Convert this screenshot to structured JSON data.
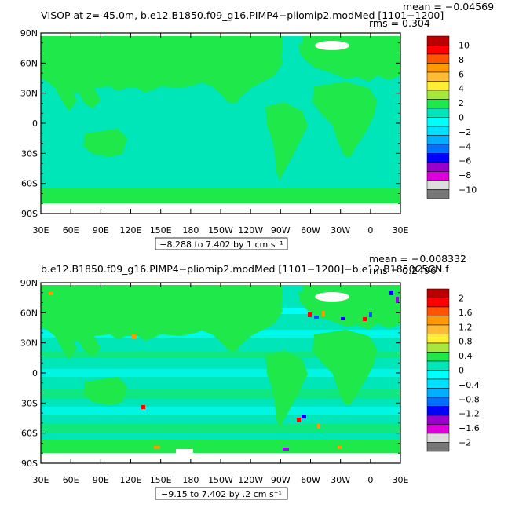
{
  "panels": [
    {
      "title": "VISOP at z=   45.0m, b.e12.B1850.f09_g16.PIMP4−pliomip2.modMed [1101−1200]",
      "mean": "mean = −0.04569",
      "rms": "rms = 0.304",
      "range": "−8.288 to 7.402 by 1 cm s⁻¹",
      "colorbar_labels": [
        "10",
        "8",
        "6",
        "4",
        "2",
        "0",
        "−2",
        "−4",
        "−6",
        "−8",
        "−10"
      ]
    },
    {
      "title": "b.e12.B1850.f09_g16.PIMP4−pliomip2.modMed [1101−1200]−b.e12.B1850C5CN.f",
      "mean": "mean = −0.008332",
      "rms": "rms = 0.2496",
      "range": "−9.15 to 7.402 by .2 cm s⁻¹",
      "colorbar_labels": [
        "2",
        "1.6",
        "1.2",
        "0.8",
        "0.4",
        "0",
        "−0.4",
        "−0.8",
        "−1.2",
        "−1.6",
        "−2"
      ]
    }
  ],
  "lat_labels": [
    "90N",
    "60N",
    "30N",
    "0",
    "30S",
    "60S",
    "90S"
  ],
  "lon_labels": [
    "30E",
    "60E",
    "90E",
    "120E",
    "150E",
    "180",
    "150W",
    "120W",
    "90W",
    "60W",
    "30W",
    "0",
    "30E"
  ],
  "colors": {
    "land": "#1ee84a",
    "ocean": "#00e6b8",
    "ocean_light": "#19e6c8",
    "neg_light": "#00ffff",
    "neg": "#00c8ff",
    "blue": "#0050ff",
    "deep_blue": "#0000ff",
    "purple": "#a000ff",
    "white": "#ffffff",
    "orange": "#ff9900",
    "red": "#ff0000"
  },
  "colorbar_colors": [
    "#bb0000",
    "#ff0000",
    "#ff5500",
    "#ff9900",
    "#ffbb33",
    "#ffee33",
    "#a8e83c",
    "#1ee84a",
    "#00e6b8",
    "#00ffff",
    "#00e0ff",
    "#00b0ff",
    "#0070ff",
    "#0000ff",
    "#9900cc",
    "#dd00dd",
    "#dddddd",
    "#777777"
  ]
}
